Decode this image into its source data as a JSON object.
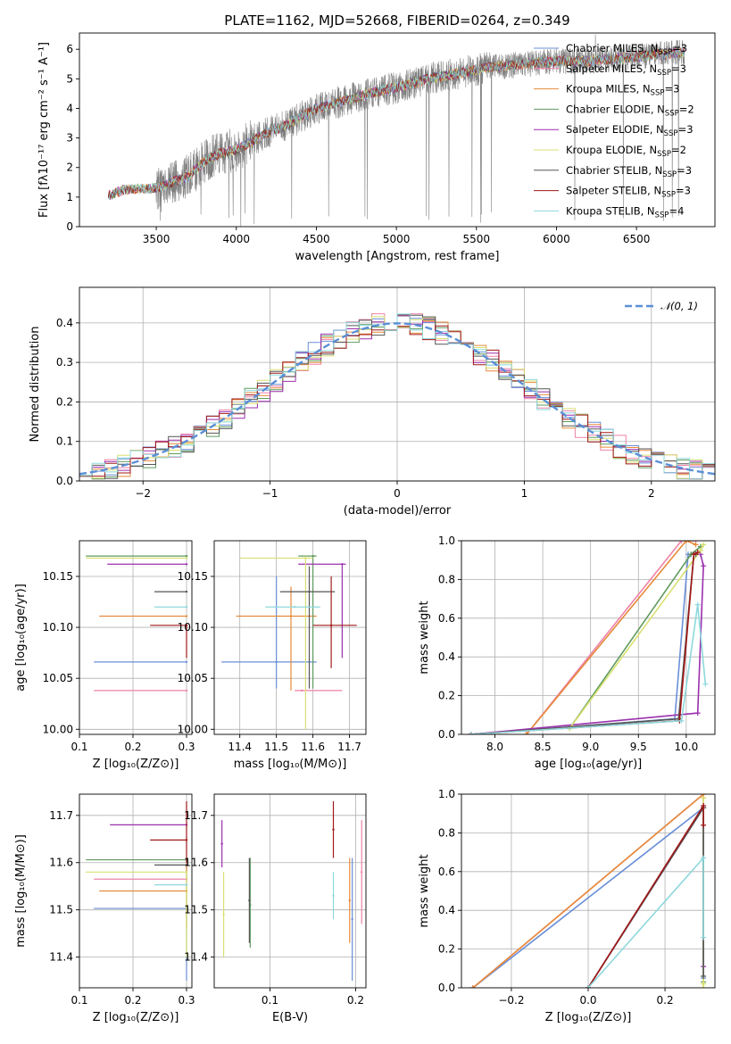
{
  "figure_title": "PLATE=1162, MJD=52668, FIBERID=0264, z=0.349",
  "models": [
    {
      "name": "Chabrier MILES, N",
      "sub": "SSP",
      "suffix": "=3",
      "color": "#6a8fd8"
    },
    {
      "name": "Salpeter MILES, N",
      "sub": "SSP",
      "suffix": "=3",
      "color": "#ee82a8"
    },
    {
      "name": "Kroupa MILES, N",
      "sub": "SSP",
      "suffix": "=3",
      "color": "#e68a3a"
    },
    {
      "name": "Chabrier ELODIE, N",
      "sub": "SSP",
      "suffix": "=2",
      "color": "#5f9a5f"
    },
    {
      "name": "Salpeter ELODIE, N",
      "sub": "SSP",
      "suffix": "=3",
      "color": "#9b2fae"
    },
    {
      "name": "Kroupa ELODIE, N",
      "sub": "SSP",
      "suffix": "=2",
      "color": "#d8e070"
    },
    {
      "name": "Chabrier STELIB, N",
      "sub": "SSP",
      "suffix": "=3",
      "color": "#555555"
    },
    {
      "name": "Salpeter STELIB, N",
      "sub": "SSP",
      "suffix": "=3",
      "color": "#a01818"
    },
    {
      "name": "Kroupa STELIB, N",
      "sub": "SSP",
      "suffix": "=4",
      "color": "#8ed8dc"
    }
  ],
  "chart_data": [
    {
      "id": "spectrum",
      "type": "line",
      "xlabel": "wavelength [Angstrom, rest frame]",
      "ylabel": "Flux [fλ10⁻¹⁷ erg cm⁻² s⁻¹ A⁻¹]",
      "xlim": [
        3020,
        6990
      ],
      "ylim": [
        0,
        6.55
      ],
      "xticks": [
        3500,
        4000,
        4500,
        5000,
        5500,
        6000,
        6500
      ],
      "yticks": [
        0,
        1,
        2,
        3,
        4,
        5,
        6
      ],
      "grid": false,
      "legend": "upper-right",
      "data_color": "#808080",
      "continuum_x": [
        3200,
        3300,
        3500,
        3700,
        3800,
        3900,
        4000,
        4100,
        4200,
        4300,
        4500,
        4700,
        4900,
        5000,
        5200,
        5400,
        5600,
        5800,
        6000,
        6200,
        6400,
        6800
      ],
      "continuum_y": [
        1.05,
        1.25,
        1.3,
        1.7,
        2.2,
        2.5,
        2.6,
        2.9,
        3.2,
        3.4,
        4.0,
        4.3,
        4.6,
        4.7,
        5.0,
        5.2,
        5.4,
        5.5,
        5.6,
        5.6,
        5.7,
        5.9
      ]
    },
    {
      "id": "residuals",
      "type": "histogram",
      "xlabel": "(data-model)/error",
      "ylabel": "Normed distribution",
      "xlim": [
        -2.5,
        2.5
      ],
      "ylim": [
        0,
        0.49
      ],
      "xticks": [
        -2,
        -1,
        0,
        1,
        2
      ],
      "yticks": [
        0.0,
        0.1,
        0.2,
        0.3,
        0.4
      ],
      "grid": true,
      "legend": "upper-right",
      "legend_label": "𝒩(0, 1)",
      "normal_color": "#5b8fd6",
      "bin_width": 0.1
    },
    {
      "id": "age-vs-Z",
      "type": "errorbar",
      "xlabel": "Z [log₁₀(Z/Z⊙)]",
      "ylabel": "age  [log₁₀(age/yr)]",
      "xlim": [
        0.1,
        0.31
      ],
      "ylim": [
        9.995,
        10.185
      ],
      "xticks": [
        0.1,
        0.2,
        0.3
      ],
      "yticks": [
        10.0,
        10.05,
        10.1,
        10.15
      ],
      "grid": true,
      "points": [
        {
          "m": 0,
          "x": 0.3,
          "xl": 0.127,
          "xh": 0.3,
          "y": 10.066,
          "yl": 10.066,
          "yh": 10.066
        },
        {
          "m": 1,
          "x": 0.3,
          "xl": 0.127,
          "xh": 0.3,
          "y": 10.038,
          "yl": 10.038,
          "yh": 10.038
        },
        {
          "m": 2,
          "x": 0.3,
          "xl": 0.137,
          "xh": 0.3,
          "y": 10.111,
          "yl": 10.111,
          "yh": 10.111
        },
        {
          "m": 3,
          "x": 0.3,
          "xl": 0.112,
          "xh": 0.3,
          "y": 10.17,
          "yl": 10.17,
          "yh": 10.17
        },
        {
          "m": 4,
          "x": 0.3,
          "xl": 0.152,
          "xh": 0.3,
          "y": 10.162,
          "yl": 10.162,
          "yh": 10.162
        },
        {
          "m": 5,
          "x": 0.3,
          "xl": 0.112,
          "xh": 0.3,
          "y": 10.168,
          "yl": 10.168,
          "yh": 10.168
        },
        {
          "m": 6,
          "x": 0.3,
          "xl": 0.24,
          "xh": 0.3,
          "y": 10.135,
          "yl": 10.135,
          "yh": 10.135
        },
        {
          "m": 7,
          "x": 0.3,
          "xl": 0.232,
          "xh": 0.3,
          "y": 10.102,
          "yl": 10.07,
          "yh": 10.102
        },
        {
          "m": 8,
          "x": 0.3,
          "xl": 0.24,
          "xh": 0.3,
          "y": 10.12,
          "yl": 10.12,
          "yh": 10.12
        }
      ]
    },
    {
      "id": "age-vs-mass",
      "type": "errorbar",
      "xlabel": "mass [log₁₀(M/M⊙)]",
      "ylabel": "",
      "xlim": [
        11.33,
        11.745
      ],
      "ylim": [
        9.995,
        10.185
      ],
      "xticks": [
        11.4,
        11.5,
        11.6,
        11.7
      ],
      "yticks": [
        10.0,
        10.05,
        10.1,
        10.15
      ],
      "grid": true,
      "points": [
        {
          "m": 0,
          "x": 11.5,
          "xl": 11.35,
          "xh": 11.61,
          "y": 10.066,
          "yl": 10.04,
          "yh": 10.15
        },
        {
          "m": 1,
          "x": 11.57,
          "xl": 11.55,
          "xh": 11.68,
          "y": 10.038,
          "yl": 10.038,
          "yh": 10.038
        },
        {
          "m": 2,
          "x": 11.54,
          "xl": 11.39,
          "xh": 11.61,
          "y": 10.111,
          "yl": 10.038,
          "yh": 10.14
        },
        {
          "m": 3,
          "x": 11.6,
          "xl": 11.56,
          "xh": 11.61,
          "y": 10.17,
          "yl": 10.04,
          "yh": 10.17
        },
        {
          "m": 4,
          "x": 11.68,
          "xl": 11.56,
          "xh": 11.69,
          "y": 10.162,
          "yl": 10.07,
          "yh": 10.162
        },
        {
          "m": 5,
          "x": 11.58,
          "xl": 11.4,
          "xh": 11.6,
          "y": 10.168,
          "yl": 10.0,
          "yh": 10.17
        },
        {
          "m": 6,
          "x": 11.59,
          "xl": 11.51,
          "xh": 11.66,
          "y": 10.135,
          "yl": 10.04,
          "yh": 10.16
        },
        {
          "m": 7,
          "x": 11.65,
          "xl": 11.6,
          "xh": 11.72,
          "y": 10.102,
          "yl": 10.06,
          "yh": 10.15
        },
        {
          "m": 8,
          "x": 11.55,
          "xl": 11.47,
          "xh": 11.62,
          "y": 10.12,
          "yl": 10.12,
          "yh": 10.12
        }
      ]
    },
    {
      "id": "weight-vs-age",
      "type": "line",
      "xlabel": "age  [log₁₀(age/yr)]",
      "ylabel": "mass weight",
      "xlim": [
        7.65,
        10.3
      ],
      "ylim": [
        0,
        1.0
      ],
      "xticks": [
        8.0,
        8.5,
        9.0,
        9.5,
        10.0
      ],
      "yticks": [
        0.0,
        0.2,
        0.4,
        0.6,
        0.8,
        1.0
      ],
      "grid": true,
      "series": [
        {
          "m": 0,
          "x": [
            7.75,
            9.88,
            10.02,
            10.05
          ],
          "y": [
            0.0,
            0.08,
            0.93,
            0.93
          ]
        },
        {
          "m": 1,
          "x": [
            8.33,
            9.95,
            10.1
          ],
          "y": [
            0.0,
            1.0,
            1.0
          ]
        },
        {
          "m": 2,
          "x": [
            8.33,
            10.0,
            10.1
          ],
          "y": [
            0.0,
            1.0,
            0.98
          ]
        },
        {
          "m": 3,
          "x": [
            8.78,
            10.05,
            10.15
          ],
          "y": [
            0.03,
            0.93,
            0.97
          ]
        },
        {
          "m": 4,
          "x": [
            7.75,
            10.12,
            10.18,
            10.15
          ],
          "y": [
            0.0,
            0.11,
            0.87,
            0.93
          ]
        },
        {
          "m": 5,
          "x": [
            8.78,
            10.15,
            10.18
          ],
          "y": [
            0.03,
            0.95,
            0.98
          ]
        },
        {
          "m": 6,
          "x": [
            7.75,
            9.92,
            10.08,
            10.1
          ],
          "y": [
            0.0,
            0.08,
            0.93,
            0.93
          ]
        },
        {
          "m": 7,
          "x": [
            7.75,
            9.93,
            10.08,
            10.12
          ],
          "y": [
            0.0,
            0.07,
            0.93,
            0.94
          ]
        },
        {
          "m": 8,
          "x": [
            7.75,
            9.95,
            10.12,
            10.2
          ],
          "y": [
            0.0,
            0.07,
            0.67,
            0.26
          ]
        }
      ]
    },
    {
      "id": "mass-vs-Z",
      "type": "errorbar",
      "xlabel": "Z [log₁₀(Z/Z⊙)]",
      "ylabel": "mass [log₁₀(M/M⊙)]",
      "xlim": [
        0.1,
        0.31
      ],
      "ylim": [
        11.335,
        11.745
      ],
      "xticks": [
        0.1,
        0.2,
        0.3
      ],
      "yticks": [
        11.4,
        11.5,
        11.6,
        11.7
      ],
      "grid": true,
      "points": [
        {
          "m": 0,
          "x": 0.3,
          "xl": 0.127,
          "xh": 0.3,
          "y": 11.503,
          "yl": 11.35,
          "yh": 11.61
        },
        {
          "m": 1,
          "x": 0.3,
          "xl": 0.127,
          "xh": 0.3,
          "y": 11.565,
          "yl": 11.565,
          "yh": 11.565
        },
        {
          "m": 2,
          "x": 0.3,
          "xl": 0.137,
          "xh": 0.3,
          "y": 11.54,
          "yl": 11.46,
          "yh": 11.6
        },
        {
          "m": 3,
          "x": 0.3,
          "xl": 0.112,
          "xh": 0.3,
          "y": 11.606,
          "yl": 11.606,
          "yh": 11.606
        },
        {
          "m": 4,
          "x": 0.3,
          "xl": 0.157,
          "xh": 0.3,
          "y": 11.68,
          "yl": 11.68,
          "yh": 11.68
        },
        {
          "m": 5,
          "x": 0.3,
          "xl": 0.112,
          "xh": 0.3,
          "y": 11.58,
          "yl": 11.4,
          "yh": 11.58
        },
        {
          "m": 6,
          "x": 0.3,
          "xl": 0.24,
          "xh": 0.3,
          "y": 11.595,
          "yl": 11.595,
          "yh": 11.595
        },
        {
          "m": 7,
          "x": 0.3,
          "xl": 0.232,
          "xh": 0.3,
          "y": 11.648,
          "yl": 11.6,
          "yh": 11.73
        },
        {
          "m": 8,
          "x": 0.3,
          "xl": 0.24,
          "xh": 0.3,
          "y": 11.553,
          "yl": 11.553,
          "yh": 11.553
        }
      ]
    },
    {
      "id": "mass-vs-EBV",
      "type": "errorbar",
      "xlabel": "E(B-V)",
      "ylabel": "",
      "xlim": [
        0.035,
        0.212
      ],
      "ylim": [
        11.335,
        11.745
      ],
      "xticks": [
        0.1,
        0.2
      ],
      "yticks": [
        11.4,
        11.5,
        11.6,
        11.7
      ],
      "grid": true,
      "points": [
        {
          "m": 0,
          "x": 0.196,
          "xl": 0.196,
          "xh": 0.196,
          "y": 11.48,
          "yl": 11.35,
          "yh": 11.61
        },
        {
          "m": 1,
          "x": 0.207,
          "xl": 0.207,
          "xh": 0.207,
          "y": 11.58,
          "yl": 11.47,
          "yh": 11.69
        },
        {
          "m": 2,
          "x": 0.193,
          "xl": 0.193,
          "xh": 0.193,
          "y": 11.52,
          "yl": 11.43,
          "yh": 11.61
        },
        {
          "m": 3,
          "x": 0.077,
          "xl": 0.077,
          "xh": 0.077,
          "y": 11.51,
          "yl": 11.42,
          "yh": 11.61
        },
        {
          "m": 4,
          "x": 0.044,
          "xl": 0.044,
          "xh": 0.044,
          "y": 11.64,
          "yl": 11.59,
          "yh": 11.69
        },
        {
          "m": 5,
          "x": 0.046,
          "xl": 0.046,
          "xh": 0.046,
          "y": 11.49,
          "yl": 11.4,
          "yh": 11.58
        },
        {
          "m": 6,
          "x": 0.076,
          "xl": 0.076,
          "xh": 0.076,
          "y": 11.52,
          "yl": 11.43,
          "yh": 11.61
        },
        {
          "m": 7,
          "x": 0.174,
          "xl": 0.174,
          "xh": 0.174,
          "y": 11.67,
          "yl": 11.61,
          "yh": 11.73
        },
        {
          "m": 8,
          "x": 0.174,
          "xl": 0.174,
          "xh": 0.174,
          "y": 11.53,
          "yl": 11.48,
          "yh": 11.58
        }
      ]
    },
    {
      "id": "weight-vs-Z",
      "type": "line",
      "xlabel": "Z [log₁₀(Z/Z⊙)]",
      "ylabel": "mass weight",
      "xlim": [
        -0.33,
        0.33
      ],
      "ylim": [
        0,
        1.0
      ],
      "xticks": [
        -0.2,
        0.0,
        0.2
      ],
      "yticks": [
        0.0,
        0.2,
        0.4,
        0.6,
        0.8,
        1.0
      ],
      "grid": true,
      "series": [
        {
          "m": 0,
          "x": [
            -0.3,
            0.3,
            0.3
          ],
          "y": [
            0.0,
            0.93,
            0.05
          ]
        },
        {
          "m": 1,
          "x": [
            -0.3,
            0.3,
            0.3
          ],
          "y": [
            0.0,
            1.0,
            0.93
          ]
        },
        {
          "m": 2,
          "x": [
            -0.3,
            0.3,
            0.3
          ],
          "y": [
            0.0,
            1.0,
            0.98
          ]
        },
        {
          "m": 3,
          "x": [
            0.0,
            0.3,
            0.3
          ],
          "y": [
            0.0,
            0.93,
            0.03
          ]
        },
        {
          "m": 4,
          "x": [
            0.0,
            0.3,
            0.3
          ],
          "y": [
            0.0,
            0.93,
            0.11
          ]
        },
        {
          "m": 5,
          "x": [
            0.3,
            0.3,
            0.3
          ],
          "y": [
            0.0,
            0.98,
            0.02
          ]
        },
        {
          "m": 6,
          "x": [
            0.0,
            0.3,
            0.3
          ],
          "y": [
            0.0,
            0.93,
            0.06
          ]
        },
        {
          "m": 7,
          "x": [
            0.0,
            0.3,
            0.3
          ],
          "y": [
            0.0,
            0.94,
            0.84
          ]
        },
        {
          "m": 8,
          "x": [
            0.0,
            0.3,
            0.3
          ],
          "y": [
            0.0,
            0.67,
            0.26
          ]
        }
      ]
    }
  ]
}
